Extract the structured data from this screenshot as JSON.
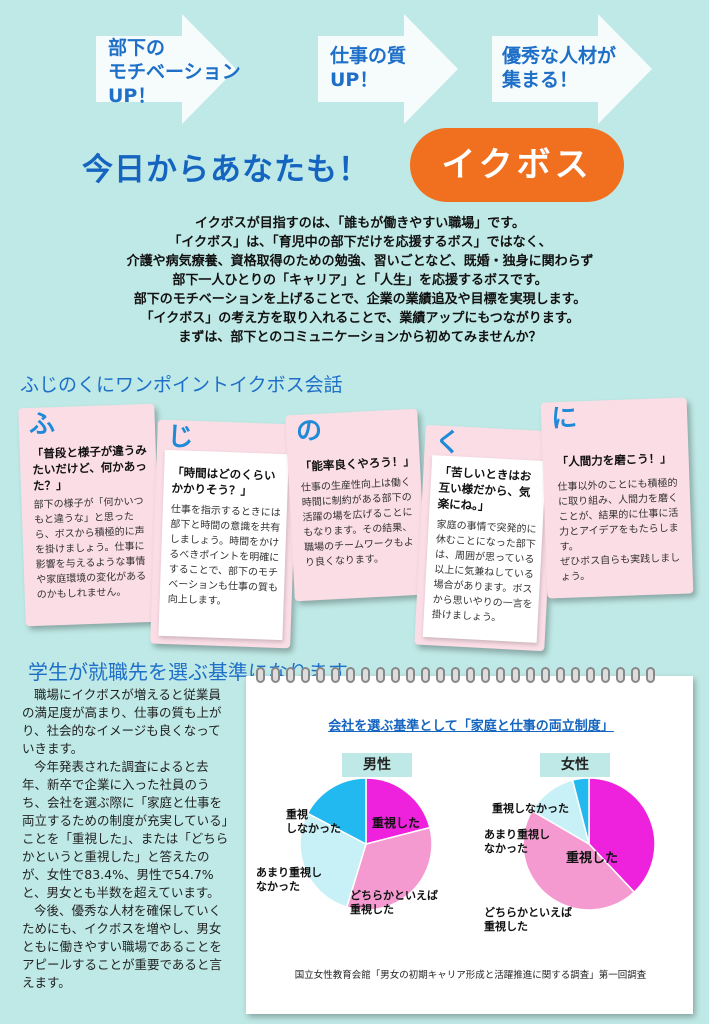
{
  "arrows": [
    {
      "text": "部下の\nモチベーション\nUP！"
    },
    {
      "text": "仕事の質\nUP！"
    },
    {
      "text": "優秀な人材が\n集まる！"
    }
  ],
  "headline": "今日からあなたも！",
  "badge": "イクボス",
  "intro": [
    "イクボスが目指すのは、「誰もが働きやすい職場」です。",
    "「イクボス」は、「育児中の部下だけを応援するボス」ではなく、",
    "介護や病気療養、資格取得のための勉強、習いごとなど、既婚・独身に関わらず",
    "部下一人ひとりの「キャリア」と「人生」を応援するボスです。",
    "部下のモチベーションを上げることで、企業の業績追及や目標を実現します。",
    "「イクボス」の考え方を取り入れることで、業績アップにもつながります。",
    "まずは、部下とのコミュニケーションから初めてみませんか？"
  ],
  "section1_title": "ふじのくにワンポイントイクボス会話",
  "notes": [
    {
      "char": "ふ",
      "head": "「普段と様子が違うみたいだけど、何かあった？」",
      "body": "部下の様子が「何かいつもと違うな」と思ったら、ボスから積極的に声を掛けましょう。仕事に影響を与えるような事情や家庭環境の変化があるのかもしれません。"
    },
    {
      "char": "じ",
      "head": "「時間はどのくらいかかりそう？」",
      "body": "仕事を指示するときには部下と時間の意識を共有しましょう。時間をかけるべきポイントを明確にすることで、部下のモチベーションも仕事の質も向上します。"
    },
    {
      "char": "の",
      "head": "「能率良くやろう！」",
      "body": "仕事の生産性向上は働く時間に制約がある部下の活躍の場を広げることにもなります。その結果、職場のチームワークもより良くなります。"
    },
    {
      "char": "く",
      "head": "「苦しいときはお互い様だから、気楽にね。」",
      "body": "家庭の事情で突発的に休むことになった部下は、周囲が思っている以上に気兼ねしている場合があります。ボスから思いやりの一言を掛けましょう。"
    },
    {
      "char": "に",
      "head": "「人間力を磨こう！」",
      "body": "仕事以外のことにも積極的に取り組み、人間力を磨くことが、結果的に仕事に活力とアイデアをもたらします。\nぜひボス自らも実践しましょう。"
    }
  ],
  "section2_title": "学生が就職先を選ぶ基準になります",
  "body_paragraphs": [
    "職場にイクボスが増えると従業員の満足度が高まり、仕事の質も上がり、社会的なイメージも良くなっていきます。",
    "今年発表された調査によると去年、新卒で企業に入った社員のうち、会社を選ぶ際に「家庭と仕事を両立するための制度が充実している」ことを「重視した」、または「どちらかというと重視した」と答えたのが、女性で83.4%、男性で54.7%と、男女とも半数を超えています。",
    "今後、優秀な人材を確保していくためにも、イクボスを増やし、男女ともに働きやすい職場であることをアピールすることが重要であると言えます。"
  ],
  "chart_data": {
    "type": "pie",
    "title": "会社を選ぶ基準として「家庭と仕事の両立制度」",
    "charts": [
      {
        "name": "男性",
        "slices": [
          {
            "label": "重視した",
            "value": 21,
            "color": "#ee22dd"
          },
          {
            "label": "どちらかといえば重視した",
            "value": 33.7,
            "color": "#f59ad0"
          },
          {
            "label": "あまり重視しなかった",
            "value": 28,
            "color": "#c8f0f7"
          },
          {
            "label": "重視しなかった",
            "value": 17.3,
            "color": "#22b8f0"
          }
        ]
      },
      {
        "name": "女性",
        "slices": [
          {
            "label": "重視した",
            "value": 38,
            "color": "#ee22dd"
          },
          {
            "label": "どちらかといえば重視した",
            "value": 45.4,
            "color": "#f59ad0"
          },
          {
            "label": "あまり重視しなかった",
            "value": 12.6,
            "color": "#c8f0f7"
          },
          {
            "label": "重視しなかった",
            "value": 4,
            "color": "#22b8f0"
          }
        ]
      }
    ]
  },
  "labels": {
    "male_important": "重視した",
    "male_somewhat": "どちらかといえば\n重視した",
    "male_not_much": "あまり重視し\nなかった",
    "male_not": "重視\nしなかった",
    "female_not": "重視しなかった",
    "female_not_much": "あまり重視し\nなかった",
    "female_important": "重視した",
    "female_somewhat": "どちらかといえば\n重視した"
  },
  "source": "国立女性教育会館「男女の初期キャリア形成と活躍推進に関する調査」第一回調査"
}
